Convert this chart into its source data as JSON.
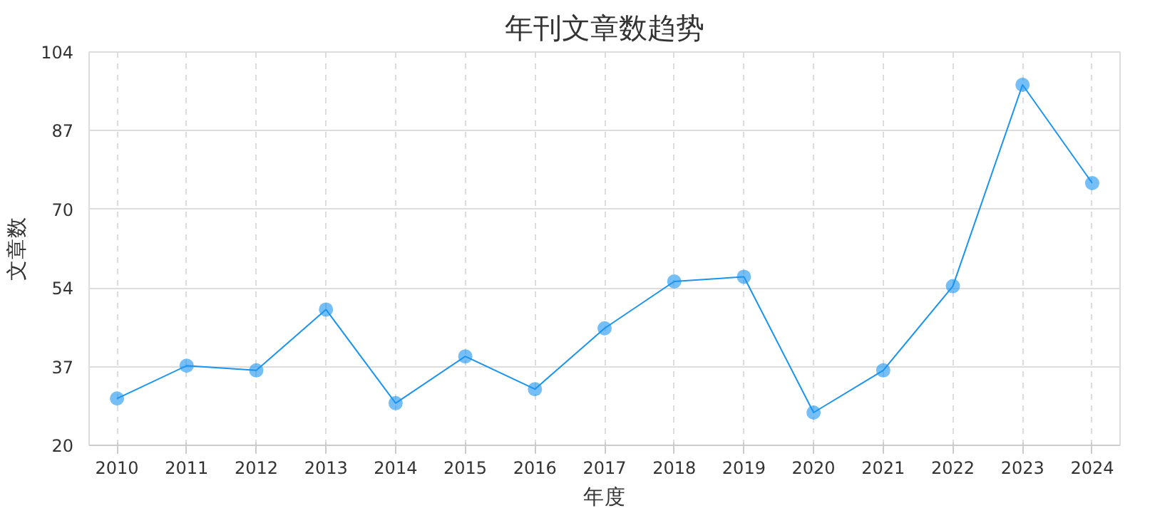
{
  "chart_data": {
    "type": "line",
    "title": "年刊文章数趋势",
    "xlabel": "年度",
    "ylabel": "文章数",
    "categories": [
      "2010",
      "2011",
      "2012",
      "2013",
      "2014",
      "2015",
      "2016",
      "2017",
      "2018",
      "2019",
      "2020",
      "2021",
      "2022",
      "2023",
      "2024"
    ],
    "series": [
      {
        "color": "#1a94f0",
        "values": [
          30,
          37,
          36,
          49,
          29,
          39,
          32,
          45,
          55,
          56,
          27,
          36,
          54,
          97,
          76
        ]
      }
    ],
    "ylim": [
      20,
      104
    ],
    "yticks": [
      20,
      {
        "value": 36.8,
        "label": "37"
      },
      {
        "value": 53.6,
        "label": "54"
      },
      {
        "value": 70.4,
        "label": "70"
      },
      {
        "value": 87.2,
        "label": "87"
      },
      104
    ],
    "grid": true,
    "marker": "circle",
    "line_style": "solid"
  }
}
